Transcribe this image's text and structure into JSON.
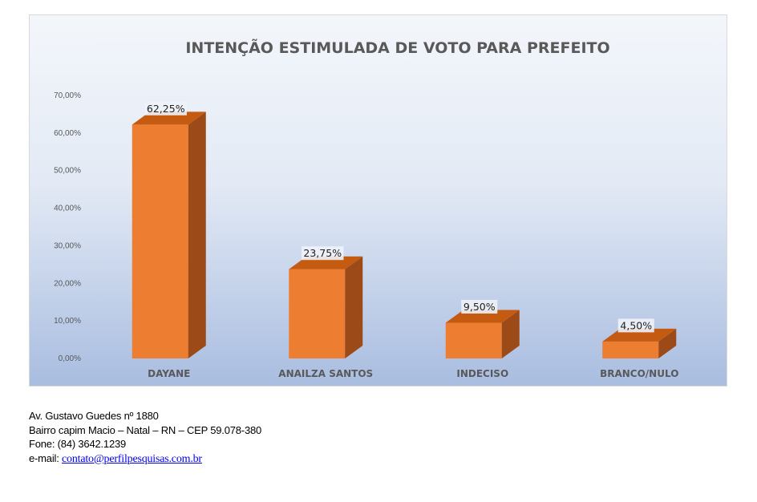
{
  "chart_data": {
    "type": "bar",
    "title": "INTENÇÃO ESTIMULADA DE VOTO PARA PREFEITO",
    "categories": [
      "DAYANE",
      "ANAILZA SANTOS",
      "INDECISO",
      "BRANCO/NULO"
    ],
    "values": [
      62.25,
      23.75,
      9.5,
      4.5
    ],
    "value_labels": [
      "62,25%",
      "23,75%",
      "9,50%",
      "4,50%"
    ],
    "y_ticks": [
      0,
      10,
      20,
      30,
      40,
      50,
      60,
      70
    ],
    "y_tick_labels": [
      "0,00%",
      "10,00%",
      "20,00%",
      "30,00%",
      "40,00%",
      "50,00%",
      "60,00%",
      "70,00%"
    ],
    "ylim": [
      0,
      70
    ],
    "xlabel": "",
    "ylabel": "",
    "grid": false,
    "three_d": true,
    "colors": {
      "bar_front": "#ed7d31",
      "bar_side": "#9c4a17",
      "bar_top": "#c55a11"
    }
  },
  "footer": {
    "line1": "Av. Gustavo Guedes nº 1880",
    "line2": "Bairro capim  Macio – Natal – RN – CEP 59.078-380",
    "line3": "Fone: (84) 3642.1239",
    "email_label": "e-mail: ",
    "email": "contato@perfilpesquisas.com.br"
  }
}
